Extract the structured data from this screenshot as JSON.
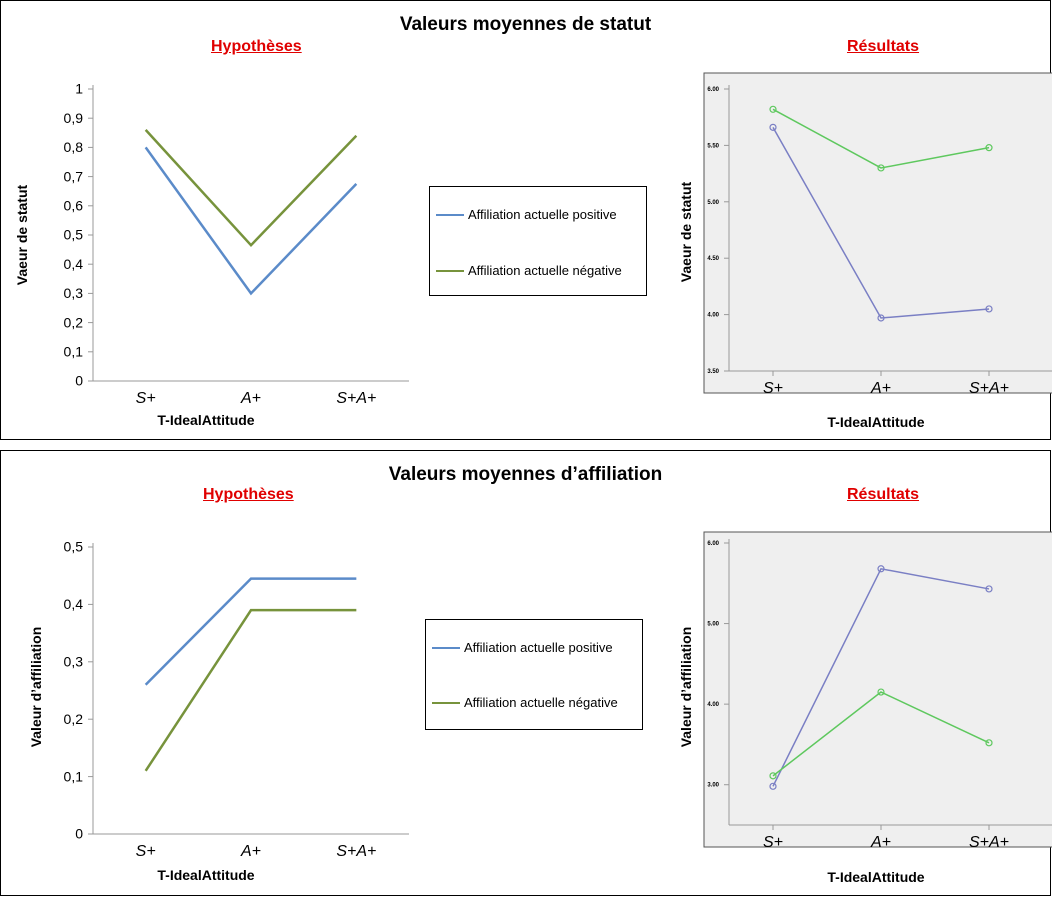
{
  "panels": [
    {
      "title": "Valeurs moyennes de statut",
      "hyp_title": "Hypothèses",
      "res_title": "Résultats"
    },
    {
      "title": "Valeurs moyennes d’affiliation",
      "hyp_title": "Hypothèses",
      "res_title": "Résultats"
    }
  ],
  "legend": {
    "positive": "Affiliation actuelle positive",
    "negative": "Affiliation actuelle négative"
  },
  "colors": {
    "hyp_positive": "#5b8bc9",
    "hyp_negative": "#77933c",
    "res_positive": "#7a7fc4",
    "res_negative": "#5ec85e"
  },
  "chart_data": [
    {
      "type": "line",
      "title": "Hypothèses",
      "xlabel": "T-IdealAttitude",
      "ylabel": "Vaeur de statut",
      "categories": [
        "S+",
        "A+",
        "S+A+"
      ],
      "ylim": [
        0,
        1
      ],
      "yticks": [
        "0",
        "0,1",
        "0,2",
        "0,3",
        "0,4",
        "0,5",
        "0,6",
        "0,7",
        "0,8",
        "0,9",
        "1"
      ],
      "series": [
        {
          "name": "Affiliation actuelle positive",
          "values": [
            0.8,
            0.3,
            0.675
          ]
        },
        {
          "name": "Affiliation actuelle négative",
          "values": [
            0.86,
            0.465,
            0.84
          ]
        }
      ]
    },
    {
      "type": "line",
      "title": "Résultats",
      "xlabel": "T-IdealAttitude",
      "ylabel": "Vaeur de statut",
      "categories": [
        "S+",
        "A+",
        "S+A+"
      ],
      "ylim": [
        3.5,
        6.0
      ],
      "yticks": [
        "3.50",
        "4.00",
        "4.50",
        "5.00",
        "5.50",
        "6.00"
      ],
      "series": [
        {
          "name": "Affiliation actuelle positive",
          "values": [
            5.66,
            3.97,
            4.05
          ]
        },
        {
          "name": "Affiliation actuelle négative",
          "values": [
            5.82,
            5.3,
            5.48
          ]
        }
      ]
    },
    {
      "type": "line",
      "title": "Hypothèses",
      "xlabel": "T-IdealAttitude",
      "ylabel": "Valeur d’affiliation",
      "categories": [
        "S+",
        "A+",
        "S+A+"
      ],
      "ylim": [
        0,
        0.5
      ],
      "yticks": [
        "0",
        "0,1",
        "0,2",
        "0,3",
        "0,4",
        "0,5"
      ],
      "series": [
        {
          "name": "Affiliation actuelle positive",
          "values": [
            0.26,
            0.445,
            0.445
          ]
        },
        {
          "name": "Affiliation actuelle négative",
          "values": [
            0.11,
            0.39,
            0.39
          ]
        }
      ]
    },
    {
      "type": "line",
      "title": "Résultats",
      "xlabel": "T-IdealAttitude",
      "ylabel": "Valeur d’affiliation",
      "categories": [
        "S+",
        "A+",
        "S+A+"
      ],
      "ylim": [
        2.5,
        6.0
      ],
      "yticks": [
        "3.00",
        "4.00",
        "5.00",
        "6.00"
      ],
      "series": [
        {
          "name": "Affiliation actuelle positive",
          "values": [
            2.98,
            5.68,
            5.43
          ]
        },
        {
          "name": "Affiliation actuelle négative",
          "values": [
            3.11,
            4.15,
            3.52
          ]
        }
      ]
    }
  ]
}
